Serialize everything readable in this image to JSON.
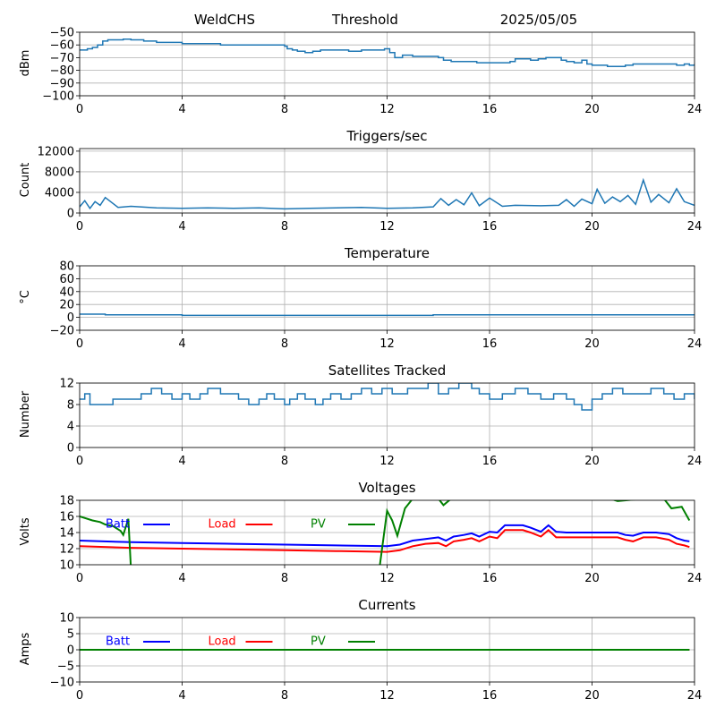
{
  "header": {
    "station": "WeldCHS",
    "product": "Threshold",
    "date": "2025/05/05"
  },
  "colors": {
    "trace": "#1f77b4",
    "batt": "#0000ff",
    "load": "#ff0000",
    "pv": "#008000",
    "grid": "#b0b0b0"
  },
  "chart_data": [
    {
      "id": "threshold",
      "type": "line",
      "title": "",
      "ylabel": "dBm",
      "xlim": [
        0,
        24
      ],
      "xticks": [
        0,
        4,
        8,
        12,
        16,
        20,
        24
      ],
      "ylim": [
        -100,
        -50
      ],
      "yticks": [
        -100,
        -90,
        -80,
        -70,
        -60,
        -50
      ],
      "grid": true,
      "series": [
        {
          "color": "#1f77b4",
          "step": true,
          "x": [
            0,
            0.3,
            0.5,
            0.7,
            0.9,
            1.1,
            1.4,
            1.7,
            2,
            2.5,
            3,
            3.5,
            4,
            4.5,
            5,
            5.5,
            6,
            6.5,
            7,
            7.5,
            8,
            8.1,
            8.3,
            8.5,
            8.8,
            9.1,
            9.4,
            9.7,
            10,
            10.5,
            11,
            11.5,
            11.9,
            12.1,
            12.3,
            12.6,
            13,
            13.5,
            14,
            14.2,
            14.5,
            15,
            15.5,
            16,
            16.5,
            16.8,
            17,
            17.3,
            17.6,
            17.9,
            18.2,
            18.5,
            18.8,
            19,
            19.3,
            19.6,
            19.8,
            20,
            20.3,
            20.6,
            21,
            21.3,
            21.6,
            22,
            22.5,
            23,
            23.3,
            23.6,
            23.8,
            24
          ],
          "y": [
            -64,
            -63,
            -62,
            -60,
            -57,
            -56,
            -56,
            -55.5,
            -56,
            -57,
            -58,
            -58,
            -59,
            -59,
            -59,
            -60,
            -60,
            -60,
            -60,
            -60,
            -61,
            -63,
            -64,
            -65,
            -66,
            -65,
            -64,
            -64,
            -64,
            -65,
            -64,
            -64,
            -63,
            -66,
            -70,
            -68,
            -69,
            -69,
            -70,
            -72,
            -73,
            -73,
            -74,
            -74,
            -74,
            -73,
            -71,
            -71,
            -72,
            -71,
            -70,
            -70,
            -72,
            -73,
            -74,
            -72,
            -75,
            -76,
            -76,
            -77,
            -77,
            -76,
            -75,
            -75,
            -75,
            -75,
            -76,
            -75,
            -76,
            -75
          ]
        }
      ]
    },
    {
      "id": "triggers",
      "type": "line",
      "title": "Triggers/sec",
      "ylabel": "Count",
      "xlim": [
        0,
        24
      ],
      "xticks": [
        0,
        4,
        8,
        12,
        16,
        20,
        24
      ],
      "ylim": [
        0,
        12500
      ],
      "yticks": [
        0,
        4000,
        8000,
        12000
      ],
      "grid": true,
      "series": [
        {
          "color": "#1f77b4",
          "step": false,
          "x": [
            0,
            0.2,
            0.4,
            0.6,
            0.8,
            1,
            1.5,
            2,
            3,
            4,
            5,
            6,
            7,
            8,
            9,
            10,
            11,
            12,
            13,
            13.8,
            14.1,
            14.4,
            14.7,
            15,
            15.3,
            15.6,
            16,
            16.5,
            17,
            18,
            18.7,
            19,
            19.3,
            19.6,
            20,
            20.2,
            20.5,
            20.8,
            21.1,
            21.4,
            21.7,
            22,
            22.3,
            22.6,
            23,
            23.3,
            23.6,
            24
          ],
          "y": [
            1200,
            2400,
            900,
            2200,
            1500,
            3000,
            1100,
            1300,
            1000,
            900,
            1000,
            900,
            1000,
            800,
            900,
            1000,
            1100,
            900,
            1000,
            1200,
            2800,
            1500,
            2600,
            1600,
            3900,
            1400,
            2900,
            1300,
            1500,
            1400,
            1500,
            2600,
            1300,
            2700,
            1800,
            4600,
            1900,
            3100,
            2200,
            3400,
            1700,
            6400,
            2100,
            3600,
            2000,
            4700,
            2200,
            1500
          ]
        }
      ]
    },
    {
      "id": "temperature",
      "type": "line",
      "title": "Temperature",
      "ylabel": "°C",
      "xlim": [
        0,
        24
      ],
      "xticks": [
        0,
        4,
        8,
        12,
        16,
        20,
        24
      ],
      "ylim": [
        -20,
        80
      ],
      "yticks": [
        -20,
        0,
        20,
        40,
        60,
        80
      ],
      "grid": true,
      "series": [
        {
          "color": "#1f77b4",
          "step": true,
          "x": [
            0,
            1,
            2,
            4,
            8,
            12,
            13.8,
            16,
            20,
            24
          ],
          "y": [
            5,
            4,
            4,
            3,
            3,
            3,
            4,
            4,
            4,
            4
          ]
        }
      ]
    },
    {
      "id": "satellites",
      "type": "line",
      "title": "Satellites Tracked",
      "ylabel": "Number",
      "xlim": [
        0,
        24
      ],
      "xticks": [
        0,
        4,
        8,
        12,
        16,
        20,
        24
      ],
      "ylim": [
        0,
        12
      ],
      "yticks": [
        0,
        4,
        8,
        12
      ],
      "grid": true,
      "series": [
        {
          "color": "#1f77b4",
          "step": true,
          "x": [
            0,
            0.2,
            0.4,
            1,
            1.3,
            2,
            2.4,
            2.8,
            3.2,
            3.6,
            4,
            4.3,
            4.7,
            5,
            5.5,
            6,
            6.2,
            6.6,
            7,
            7.3,
            7.6,
            8,
            8.2,
            8.5,
            8.8,
            9.2,
            9.5,
            9.8,
            10.2,
            10.6,
            11,
            11.4,
            11.8,
            12.2,
            12.8,
            13.2,
            13.6,
            14,
            14.4,
            14.8,
            15.3,
            15.6,
            16,
            16.5,
            17,
            17.5,
            18,
            18.5,
            19,
            19.3,
            19.6,
            20,
            20.4,
            20.8,
            21.2,
            21.8,
            22.3,
            22.8,
            23.2,
            23.6,
            24
          ],
          "y": [
            9,
            10,
            8,
            8,
            9,
            9,
            10,
            11,
            10,
            9,
            10,
            9,
            10,
            11,
            10,
            10,
            9,
            8,
            9,
            10,
            9,
            8,
            9,
            10,
            9,
            8,
            9,
            10,
            9,
            10,
            11,
            10,
            11,
            10,
            11,
            11,
            12,
            10,
            11,
            12,
            11,
            10,
            9,
            10,
            11,
            10,
            9,
            10,
            9,
            8,
            7,
            9,
            10,
            11,
            10,
            10,
            11,
            10,
            9,
            10,
            9
          ]
        }
      ]
    },
    {
      "id": "voltages",
      "type": "line",
      "title": "Voltages",
      "ylabel": "Volts",
      "xlim": [
        0,
        24
      ],
      "xticks": [
        0,
        4,
        8,
        12,
        16,
        20,
        24
      ],
      "ylim": [
        10,
        18
      ],
      "yticks": [
        10,
        12,
        14,
        16,
        18
      ],
      "grid": true,
      "legend": [
        {
          "label": "Batt",
          "color": "#0000ff"
        },
        {
          "label": "Load",
          "color": "#ff0000"
        },
        {
          "label": "PV",
          "color": "#008000"
        }
      ],
      "series": [
        {
          "name": "Batt",
          "color": "#0000ff",
          "step": false,
          "x": [
            0,
            2,
            4,
            6,
            8,
            10,
            12,
            12.5,
            13,
            13.5,
            14,
            14.3,
            14.6,
            15,
            15.3,
            15.6,
            16,
            16.3,
            16.6,
            17,
            17.3,
            17.6,
            18,
            18.3,
            18.6,
            19,
            20,
            21,
            21.3,
            21.6,
            22,
            22.5,
            23,
            23.3,
            23.6,
            23.8
          ],
          "y": [
            13,
            12.8,
            12.7,
            12.6,
            12.5,
            12.4,
            12.3,
            12.5,
            13,
            13.2,
            13.4,
            13,
            13.5,
            13.7,
            13.9,
            13.5,
            14.1,
            14,
            14.9,
            14.9,
            14.9,
            14.6,
            14.1,
            14.9,
            14.1,
            14,
            14,
            14,
            13.7,
            13.6,
            14,
            14,
            13.8,
            13.3,
            13,
            12.9
          ]
        },
        {
          "name": "Load",
          "color": "#ff0000",
          "step": false,
          "x": [
            0,
            2,
            4,
            6,
            8,
            10,
            12,
            12.5,
            13,
            13.5,
            14,
            14.3,
            14.6,
            15,
            15.3,
            15.6,
            16,
            16.3,
            16.6,
            17,
            17.3,
            17.6,
            18,
            18.3,
            18.6,
            19,
            20,
            21,
            21.3,
            21.6,
            22,
            22.5,
            23,
            23.3,
            23.6,
            23.8
          ],
          "y": [
            12.3,
            12.1,
            12,
            11.9,
            11.8,
            11.7,
            11.6,
            11.8,
            12.3,
            12.6,
            12.7,
            12.3,
            12.9,
            13.1,
            13.3,
            12.9,
            13.5,
            13.3,
            14.3,
            14.3,
            14.3,
            14,
            13.5,
            14.3,
            13.4,
            13.4,
            13.4,
            13.4,
            13.1,
            12.9,
            13.4,
            13.4,
            13.1,
            12.6,
            12.4,
            12.2
          ]
        },
        {
          "name": "PV",
          "color": "#008000",
          "step": false,
          "x": [
            0,
            0.5,
            0.8,
            1,
            1.3,
            1.6,
            1.7,
            1.9,
            2,
            11.7,
            12,
            12.2,
            12.4,
            12.7,
            13,
            14,
            14.2,
            14.5,
            15,
            16,
            20,
            20.7,
            21,
            22,
            22.8,
            23.1,
            23.5,
            23.8
          ],
          "y": [
            16,
            15.5,
            15.3,
            15,
            14.8,
            14.2,
            13.7,
            15.7,
            9.5,
            9.5,
            16.7,
            15.5,
            13.6,
            17,
            18.2,
            18.2,
            17.4,
            18.2,
            18.2,
            18.2,
            18.2,
            18.2,
            17.9,
            18.2,
            18.2,
            17,
            17.2,
            15.5
          ]
        }
      ]
    },
    {
      "id": "currents",
      "type": "line",
      "title": "Currents",
      "ylabel": "Amps",
      "xlim": [
        0,
        24
      ],
      "xticks": [
        0,
        4,
        8,
        12,
        16,
        20,
        24
      ],
      "ylim": [
        -10,
        10
      ],
      "yticks": [
        -10,
        -5,
        0,
        5,
        10
      ],
      "grid": true,
      "legend": [
        {
          "label": "Batt",
          "color": "#0000ff"
        },
        {
          "label": "Load",
          "color": "#ff0000"
        },
        {
          "label": "PV",
          "color": "#008000"
        }
      ],
      "series": [
        {
          "name": "Batt",
          "color": "#0000ff",
          "step": false,
          "x": [
            0,
            23.8
          ],
          "y": [
            0,
            0
          ]
        },
        {
          "name": "Load",
          "color": "#ff0000",
          "step": false,
          "x": [
            0,
            23.8
          ],
          "y": [
            0,
            0
          ]
        },
        {
          "name": "PV",
          "color": "#008000",
          "step": false,
          "x": [
            0,
            23.8
          ],
          "y": [
            0,
            0
          ]
        }
      ]
    }
  ]
}
